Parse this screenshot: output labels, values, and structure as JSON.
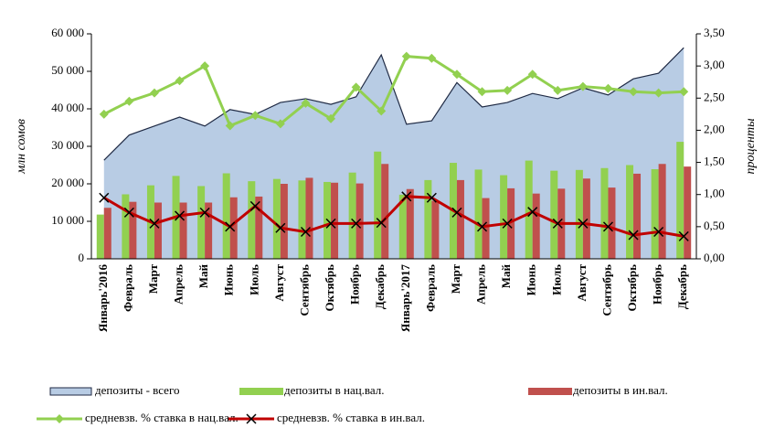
{
  "chart_data": {
    "type": "combo",
    "y_label": "млн сомов",
    "y2_label": "проценты",
    "categories": [
      "Январь'2016",
      "Февраль",
      "Март",
      "Апрель",
      "Май",
      "Июнь",
      "Июль",
      "Август",
      "Сентябрь",
      "Октябрь",
      "Ноябрь",
      "Декабрь",
      "Январь'2017",
      "Февраль",
      "Март",
      "Апрель",
      "Май",
      "Июнь",
      "Июль",
      "Август",
      "Сентябрь",
      "Октябрь",
      "Ноябрь",
      "Декабрь"
    ],
    "ylim": [
      0,
      60000
    ],
    "yticks": [
      {
        "value": 0,
        "label": "0"
      },
      {
        "value": 10000,
        "label": "10 000"
      },
      {
        "value": 20000,
        "label": "20 000"
      },
      {
        "value": 30000,
        "label": "30 000"
      },
      {
        "value": 40000,
        "label": "40 000"
      },
      {
        "value": 50000,
        "label": "50 000"
      },
      {
        "value": 60000,
        "label": "60 000"
      }
    ],
    "y2lim": [
      0,
      3.5
    ],
    "y2ticks": [
      {
        "value": 0,
        "label": "0,00"
      },
      {
        "value": 0.5,
        "label": "0,50"
      },
      {
        "value": 1,
        "label": "1,00"
      },
      {
        "value": 1.5,
        "label": "1,50"
      },
      {
        "value": 2,
        "label": "2,00"
      },
      {
        "value": 2.5,
        "label": "2,50"
      },
      {
        "value": 3,
        "label": "3,00"
      },
      {
        "value": 3.5,
        "label": "3,50"
      }
    ],
    "series": [
      {
        "name": "депозиты - всего",
        "type": "area",
        "color": "#b8cce4",
        "values": [
          26300,
          33000,
          35400,
          37800,
          35400,
          39800,
          38500,
          41700,
          42700,
          41200,
          43200,
          54400,
          35900,
          36800,
          47000,
          40500,
          41700,
          44100,
          42700,
          45600,
          43700,
          48000,
          49500,
          56300
        ]
      },
      {
        "name": "депозиты в нац.вал.",
        "type": "bar",
        "color": "#92d050",
        "values": [
          11800,
          17200,
          19600,
          22100,
          19400,
          22800,
          20700,
          21300,
          20900,
          20500,
          23000,
          28600,
          17100,
          21000,
          25600,
          23800,
          22300,
          26200,
          23500,
          23700,
          24200,
          25000,
          23900,
          31200
        ]
      },
      {
        "name": "депозиты в ин.вал.",
        "type": "bar",
        "color": "#c0504d",
        "values": [
          13600,
          15200,
          15000,
          15000,
          15000,
          16400,
          16600,
          20000,
          21600,
          20300,
          20100,
          25300,
          18600,
          15500,
          21000,
          16200,
          18800,
          17400,
          18700,
          21400,
          19000,
          22700,
          25300,
          24600
        ]
      },
      {
        "name": "средневзв. % ставка в нац.вал.",
        "type": "line",
        "axis": "y2",
        "color": "#92d050",
        "values": [
          2.25,
          2.45,
          2.58,
          2.77,
          3.0,
          2.07,
          2.23,
          2.1,
          2.42,
          2.18,
          2.67,
          2.3,
          3.15,
          3.12,
          2.87,
          2.6,
          2.62,
          2.87,
          2.62,
          2.68,
          2.65,
          2.6,
          2.58,
          2.6
        ]
      },
      {
        "name": "средневзв. % ставка в ин.вал.",
        "type": "line",
        "axis": "y2",
        "color": "#c00000",
        "values": [
          0.95,
          0.72,
          0.55,
          0.67,
          0.72,
          0.5,
          0.82,
          0.48,
          0.42,
          0.55,
          0.55,
          0.56,
          0.97,
          0.95,
          0.72,
          0.5,
          0.55,
          0.73,
          0.55,
          0.55,
          0.5,
          0.37,
          0.42,
          0.35
        ]
      }
    ]
  }
}
